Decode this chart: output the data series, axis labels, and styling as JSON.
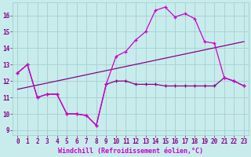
{
  "xlabel": "Windchill (Refroidissement éolien,°C)",
  "background_color": "#c8ecec",
  "grid_color": "#a8d4d4",
  "line1_color": "#cc00cc",
  "line2_color": "#880088",
  "xlim": [
    -0.5,
    23.5
  ],
  "ylim": [
    8.7,
    16.8
  ],
  "yticks": [
    9,
    10,
    11,
    12,
    13,
    14,
    15,
    16
  ],
  "xticks": [
    0,
    1,
    2,
    3,
    4,
    5,
    6,
    7,
    8,
    9,
    10,
    11,
    12,
    13,
    14,
    15,
    16,
    17,
    18,
    19,
    20,
    21,
    22,
    23
  ],
  "line1_x": [
    0,
    1,
    2,
    3,
    4,
    5,
    6,
    7,
    8,
    9,
    10,
    11,
    12,
    13,
    14,
    15,
    16,
    17,
    18,
    19,
    20,
    21,
    22,
    23
  ],
  "line1_y": [
    12.5,
    13.0,
    11.0,
    11.2,
    11.2,
    10.0,
    10.0,
    9.9,
    9.3,
    11.8,
    13.5,
    13.8,
    14.5,
    15.0,
    16.3,
    16.5,
    15.9,
    16.1,
    15.8,
    14.4,
    14.3,
    12.2,
    12.0,
    11.7
  ],
  "line2_x": [
    0,
    1,
    2,
    3,
    4,
    5,
    6,
    7,
    8,
    9,
    10,
    11,
    12,
    13,
    14,
    15,
    16,
    17,
    18,
    19,
    20,
    21,
    22,
    23
  ],
  "line2_y": [
    12.5,
    13.0,
    11.0,
    11.2,
    11.2,
    10.0,
    10.0,
    9.9,
    9.3,
    11.8,
    12.0,
    12.0,
    11.8,
    11.8,
    11.8,
    11.7,
    11.7,
    11.7,
    11.7,
    11.7,
    11.7,
    12.2,
    12.0,
    11.7
  ],
  "trend_x": [
    0,
    23
  ],
  "trend_y": [
    11.5,
    14.4
  ],
  "tick_fontsize": 5.5,
  "xlabel_fontsize": 6.0
}
